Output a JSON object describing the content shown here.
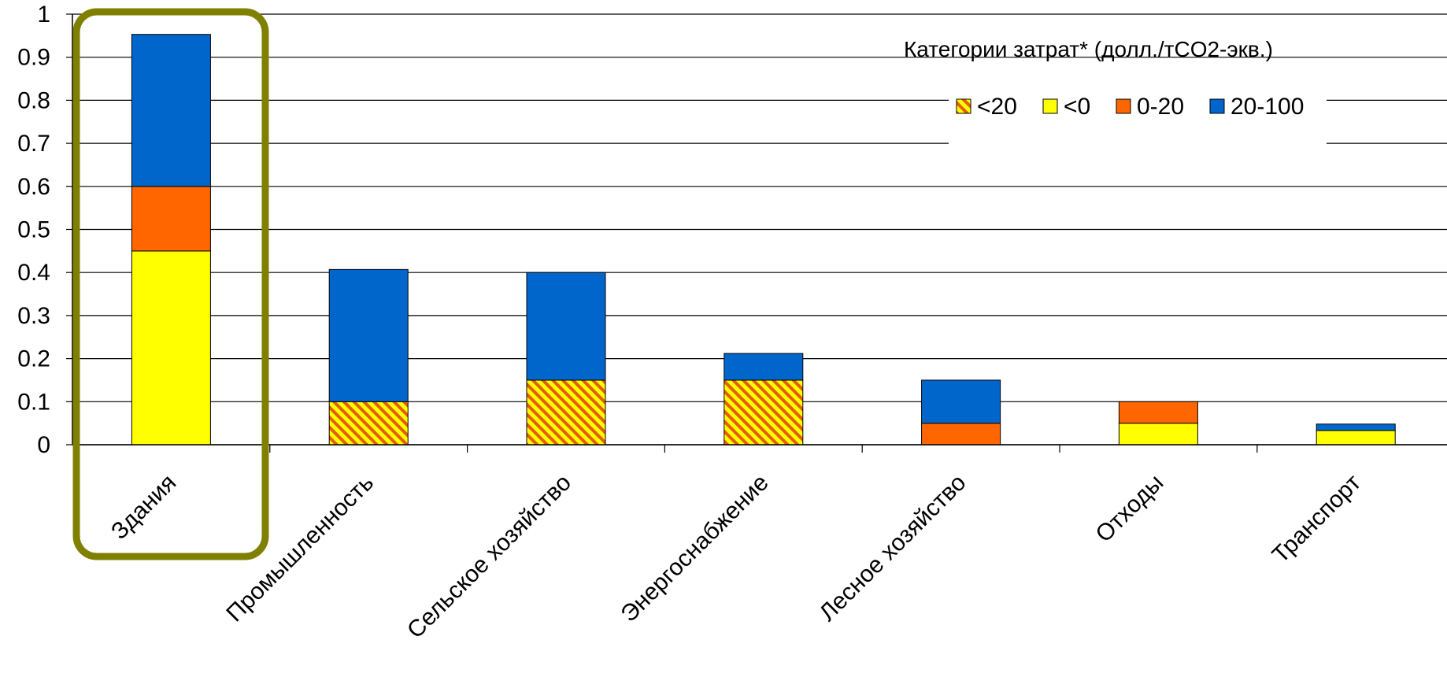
{
  "chart_data": {
    "type": "bar",
    "stacked": true,
    "categories": [
      "Здания",
      "Промышленность",
      "Сельское хозяйство",
      "Энергоснабжение",
      "Лесное хозяйство",
      "Отходы",
      "Транспорт"
    ],
    "series": [
      {
        "name": "<20",
        "color": "#ffff00",
        "hatch": "#e65c00",
        "values": [
          0,
          0.1,
          0.15,
          0.15,
          0,
          0,
          0
        ]
      },
      {
        "name": "<0",
        "color": "#ffff00",
        "values": [
          0.45,
          0,
          0,
          0,
          0,
          0.05,
          0.033
        ]
      },
      {
        "name": "0-20",
        "color": "#ff6600",
        "values": [
          0.15,
          0,
          0,
          0,
          0.05,
          0.05,
          0
        ]
      },
      {
        "name": "20-100",
        "color": "#0066cc",
        "values": [
          0.353,
          0.307,
          0.25,
          0.062,
          0.1,
          0,
          0.015
        ]
      }
    ],
    "y_ticks": [
      "0",
      "0.1",
      "0.2",
      "0.3",
      "0.4",
      "0.5",
      "0.6",
      "0.7",
      "0.8",
      "0.9",
      "1"
    ],
    "ylim": [
      0,
      1
    ],
    "grid": true,
    "legend_title": "Категории затрат* (долл./тCO2-экв.)",
    "legend_position": "top-right",
    "highlight": {
      "category": "Здания",
      "color": "#808000"
    }
  }
}
